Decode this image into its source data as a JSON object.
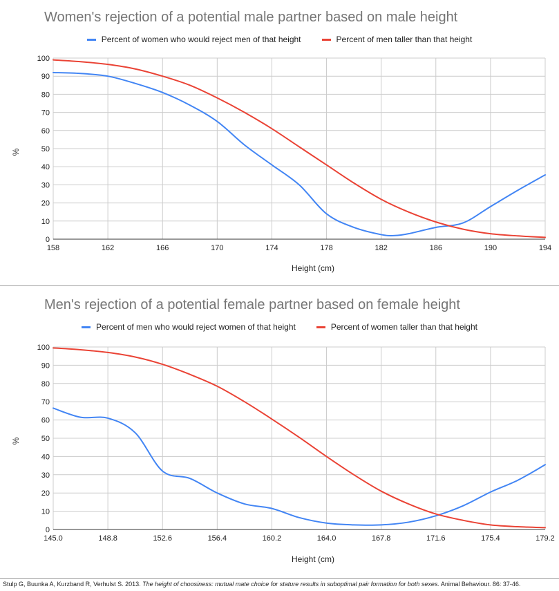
{
  "chart_data": [
    {
      "type": "line",
      "title": "Women's rejection of a potential male partner based on male height",
      "xlabel": "Height (cm)",
      "ylabel": "%",
      "xlim": [
        158,
        194
      ],
      "ylim": [
        0,
        100
      ],
      "x_ticks": [
        "158",
        "162",
        "166",
        "170",
        "174",
        "178",
        "182",
        "186",
        "190",
        "194"
      ],
      "y_ticks": [
        "0",
        "10",
        "20",
        "30",
        "40",
        "50",
        "60",
        "70",
        "80",
        "90",
        "100"
      ],
      "grid": true,
      "legend_position": "top",
      "series": [
        {
          "name": "Percent of women who would reject men of that height",
          "color": "#4285f4",
          "x": [
            158,
            160,
            162,
            164,
            166,
            168,
            170,
            172,
            174,
            176,
            178,
            180,
            182,
            183,
            184,
            186,
            188,
            190,
            192,
            194
          ],
          "y": [
            92,
            91.5,
            90,
            86,
            81,
            74,
            65,
            52,
            41,
            30,
            14,
            6.5,
            2.5,
            2,
            3,
            6.5,
            9,
            18,
            27,
            35.5
          ]
        },
        {
          "name": "Percent of men taller than that height",
          "color": "#ea4335",
          "x": [
            158,
            160,
            162,
            164,
            166,
            168,
            170,
            172,
            174,
            176,
            178,
            180,
            182,
            184,
            186,
            188,
            190,
            192,
            194
          ],
          "y": [
            99,
            98,
            96.5,
            94,
            90,
            85,
            78,
            70,
            61,
            51,
            41,
            31,
            22,
            15,
            9.5,
            5.5,
            3,
            1.8,
            1
          ]
        }
      ]
    },
    {
      "type": "line",
      "title": "Men's rejection of a potential female partner based on female height",
      "xlabel": "Height (cm)",
      "ylabel": "%",
      "xlim": [
        145.0,
        179.2
      ],
      "ylim": [
        0,
        100
      ],
      "x_ticks": [
        "145.0",
        "148.8",
        "152.6",
        "156.4",
        "160.2",
        "164.0",
        "167.8",
        "171.6",
        "175.4",
        "179.2"
      ],
      "y_ticks": [
        "0",
        "10",
        "20",
        "30",
        "40",
        "50",
        "60",
        "70",
        "80",
        "90",
        "100"
      ],
      "grid": true,
      "legend_position": "top",
      "series": [
        {
          "name": "Percent of men who would reject women of that height",
          "color": "#4285f4",
          "x": [
            145.0,
            146.9,
            148.8,
            150.7,
            152.6,
            154.5,
            156.4,
            158.3,
            160.2,
            162.1,
            164.0,
            165.9,
            167.8,
            169.7,
            171.6,
            173.5,
            175.4,
            177.3,
            179.2
          ],
          "y": [
            66.5,
            61.5,
            61,
            53,
            32,
            28,
            20,
            14,
            11.5,
            6.5,
            3.5,
            2.5,
            2.5,
            4,
            7.5,
            13,
            20.5,
            27,
            35.5
          ]
        },
        {
          "name": "Percent of women taller than that height",
          "color": "#ea4335",
          "x": [
            145.0,
            146.9,
            148.8,
            150.7,
            152.6,
            154.5,
            156.4,
            158.3,
            160.2,
            162.1,
            164.0,
            165.9,
            167.8,
            169.7,
            171.6,
            173.5,
            175.4,
            177.3,
            179.2
          ],
          "y": [
            99.5,
            98.5,
            97,
            94.5,
            90.5,
            85,
            78.5,
            70,
            60.5,
            50.5,
            40,
            30,
            21,
            14,
            8.5,
            5,
            2.5,
            1.5,
            1
          ]
        }
      ]
    }
  ],
  "citation": {
    "authors": "Stulp G, Buunka A, Kurzband R, Verhulst S. 2013. ",
    "title": "The height of choosiness: mutual mate choice for stature results in suboptimal pair formation for both sexes.",
    "journal": " Animal Behaviour. 86: 37-46."
  }
}
